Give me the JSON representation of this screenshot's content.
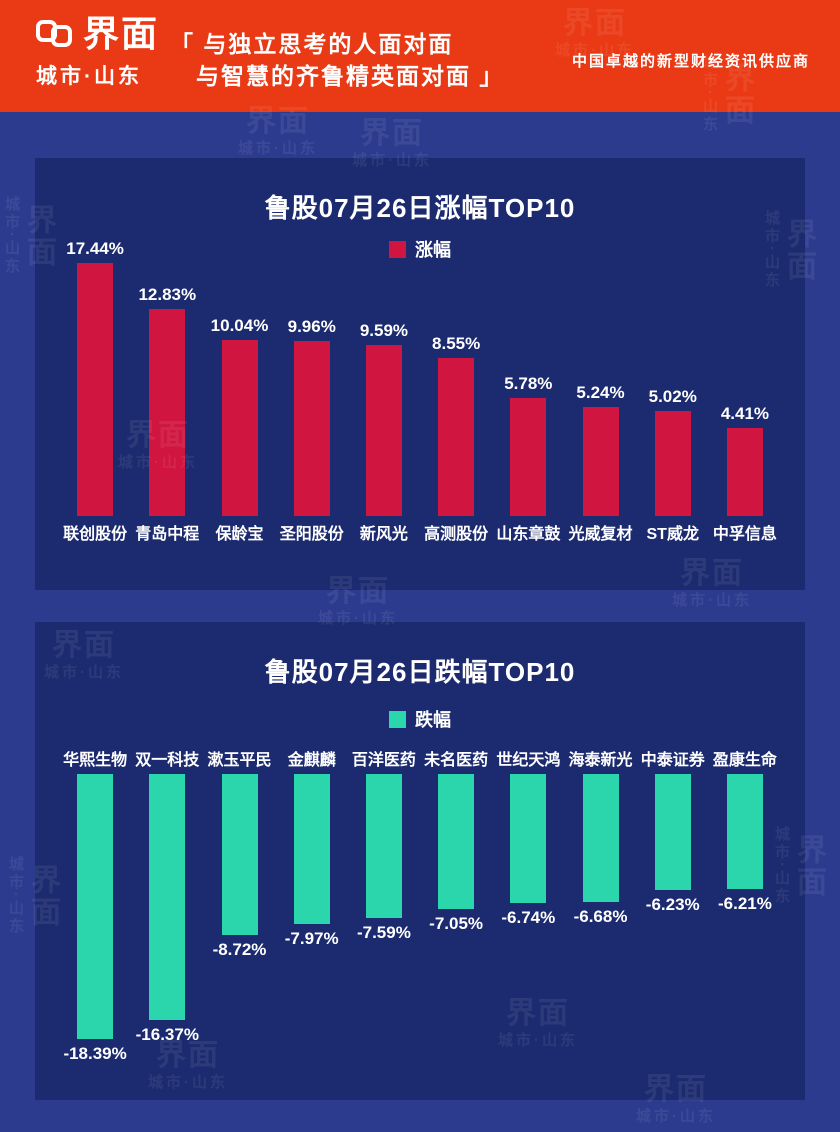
{
  "header": {
    "brand": "界面",
    "sub_brand": "城市·山东",
    "slogan_line1": "「 与独立思考的人面对面",
    "slogan_line2": "与智慧的齐鲁精英面对面 」",
    "tagline": "中国卓越的新型财经资讯供应商"
  },
  "watermark": {
    "brand": "界面",
    "text": "城市·山东"
  },
  "colors": {
    "header_red": "#e93a15",
    "body_blue": "#2d3b8f",
    "panel_navy": "#1c2b6f",
    "gain_red": "#d01540",
    "loss_teal": "#2bd6ad",
    "text_white": "#ffffff"
  },
  "chart_data": [
    {
      "type": "bar",
      "title": "鲁股07月26日涨幅TOP10",
      "legend": "涨幅",
      "direction": "up",
      "bar_color": "#d01540",
      "categories": [
        "联创股份",
        "青岛中程",
        "保龄宝",
        "圣阳股份",
        "新风光",
        "高测股份",
        "山东章鼓",
        "光威复材",
        "ST威龙",
        "中孚信息"
      ],
      "values": [
        17.44,
        12.83,
        10.04,
        9.96,
        9.59,
        8.55,
        5.78,
        5.24,
        5.02,
        4.41
      ],
      "value_labels": [
        "17.44%",
        "12.83%",
        "10.04%",
        "9.96%",
        "9.59%",
        "8.55%",
        "5.78%",
        "5.24%",
        "5.02%",
        "4.41%"
      ],
      "xlabel": "",
      "ylabel": "",
      "ylim": [
        0,
        18
      ],
      "grid": false,
      "legend_position": "top-center"
    },
    {
      "type": "bar",
      "title": "鲁股07月26日跌幅TOP10",
      "legend": "跌幅",
      "direction": "down",
      "bar_color": "#2bd6ad",
      "categories": [
        "华熙生物",
        "双一科技",
        "漱玉平民",
        "金麒麟",
        "百洋医药",
        "未名医药",
        "世纪天鸿",
        "海泰新光",
        "中泰证券",
        "盈康生命"
      ],
      "values": [
        -18.39,
        -16.37,
        -8.72,
        -7.97,
        -7.59,
        -7.05,
        -6.74,
        -6.68,
        -6.23,
        -6.21
      ],
      "value_labels": [
        "-18.39%",
        "-16.37%",
        "-8.72%",
        "-7.97%",
        "-7.59%",
        "-7.05%",
        "-6.74%",
        "-6.68%",
        "-6.23%",
        "-6.21%"
      ],
      "xlabel": "",
      "ylabel": "",
      "ylim": [
        -19,
        0
      ],
      "grid": false,
      "legend_position": "top-center"
    }
  ]
}
